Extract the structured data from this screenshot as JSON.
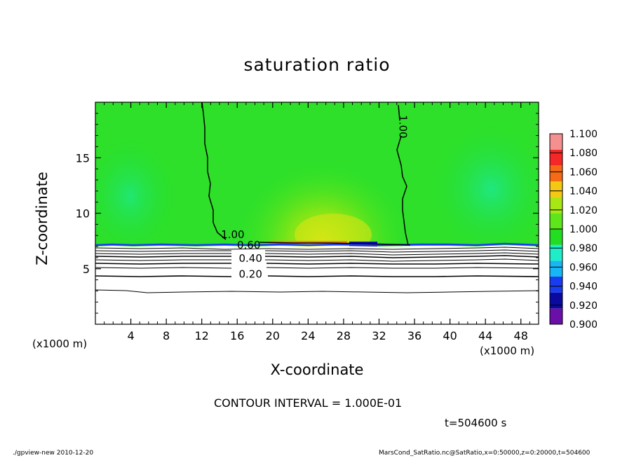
{
  "title": "saturation ratio",
  "footer_left": "./gpview-new  2010-12-20",
  "footer_right": "MarsCond_SatRatio.nc@SatRatio,x=0:50000,z=0:20000,t=504600",
  "contour_interval_text": "CONTOUR INTERVAL = 1.000E-01",
  "time_label": "t=504600 s",
  "chart_data": {
    "type": "heatmap",
    "title": "saturation ratio",
    "xlabel": "X-coordinate",
    "ylabel": "Z-coordinate",
    "x_unit": "(x1000 m)",
    "xlim": [
      0,
      50
    ],
    "ylim": [
      0,
      20
    ],
    "x_ticks": [
      4,
      8,
      12,
      16,
      20,
      24,
      28,
      32,
      36,
      40,
      44,
      48
    ],
    "y_ticks": [
      5,
      10,
      15
    ],
    "colorbar": {
      "levels": [
        0.9,
        0.92,
        0.94,
        0.96,
        0.98,
        1.0,
        1.02,
        1.04,
        1.06,
        1.08,
        1.1
      ],
      "labels": [
        "0.900",
        "0.920",
        "0.940",
        "0.960",
        "0.980",
        "1.000",
        "1.020",
        "1.040",
        "1.060",
        "1.080",
        "1.100"
      ],
      "colors": [
        "#6a0fa8",
        "#0a0aa0",
        "#1a3cf0",
        "#17b7f5",
        "#1eeec8",
        "#22dd22",
        "#5ee61a",
        "#a8e614",
        "#f5c814",
        "#f56a14",
        "#f52828",
        "#f59090"
      ]
    },
    "contour_labels": [
      {
        "text": "1.00",
        "x": 15.5,
        "z": 7.75
      },
      {
        "text": "1.00",
        "x": 34.3,
        "z": 17.8,
        "rotate": 90
      },
      {
        "text": "0.60",
        "x": 17.3,
        "z": 6.8
      },
      {
        "text": "0.40",
        "x": 17.5,
        "z": 5.6
      },
      {
        "text": "0.20",
        "x": 17.5,
        "z": 4.2
      }
    ],
    "contour_interval": 0.1,
    "saturation_top_z": 7.0,
    "t": 504600
  }
}
